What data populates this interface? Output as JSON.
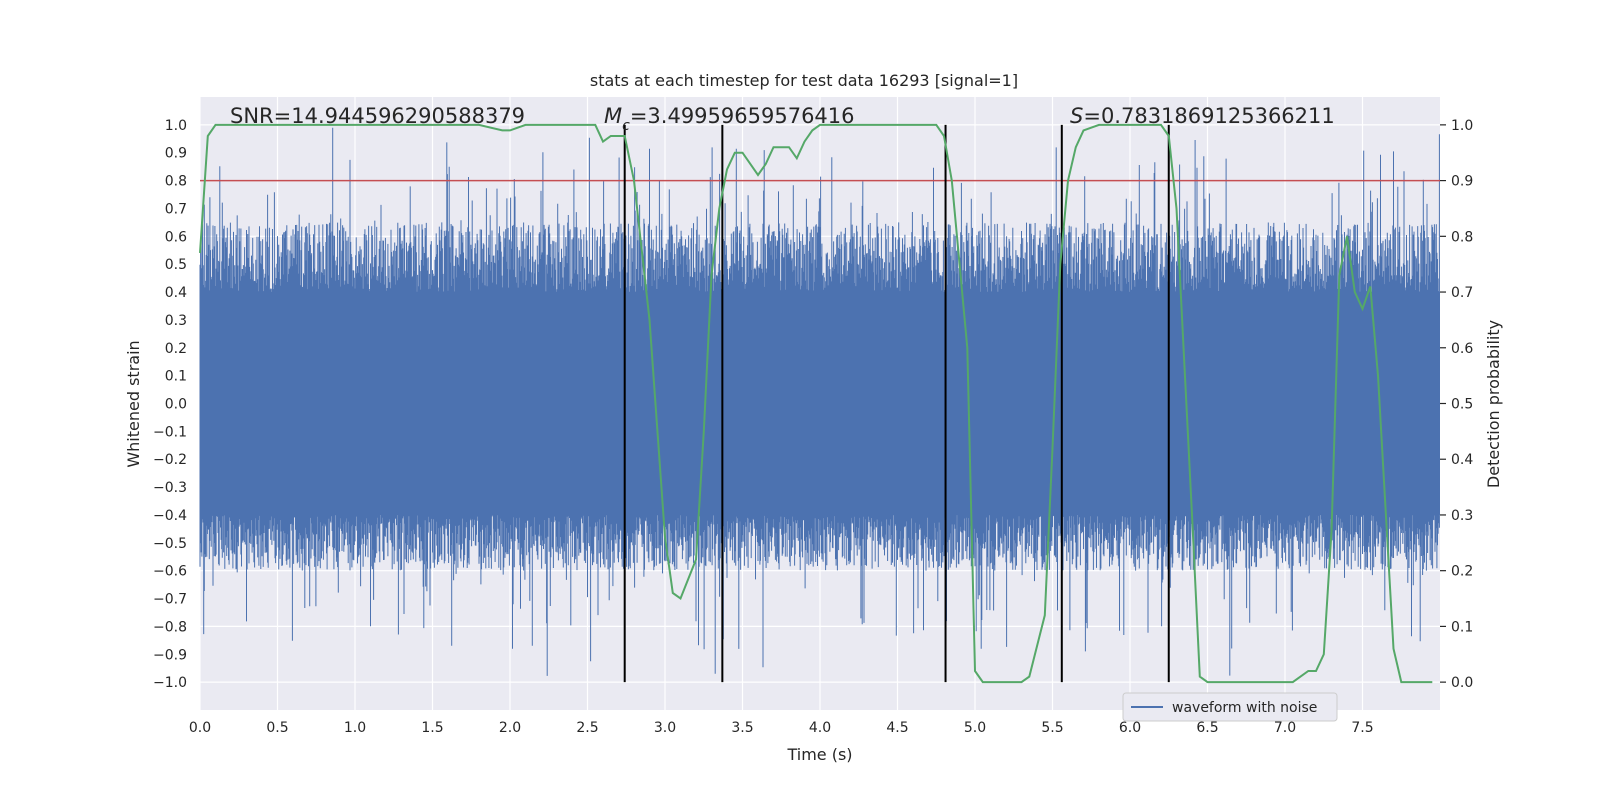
{
  "chart_data": {
    "type": "line",
    "title": "stats at each timestep for test data 16293 [signal=1]",
    "xlabel": "Time (s)",
    "ylabel_left": "Whitened strain",
    "ylabel_right": "Detection probability",
    "xlim": [
      0,
      8
    ],
    "ylim_left": [
      -1.1,
      1.1
    ],
    "ylim_right": [
      -0.05,
      1.05
    ],
    "x_ticks": [
      "0.0",
      "0.5",
      "1.0",
      "1.5",
      "2.0",
      "2.5",
      "3.0",
      "3.5",
      "4.0",
      "4.5",
      "5.0",
      "5.5",
      "6.0",
      "6.5",
      "7.0",
      "7.5"
    ],
    "y_left_ticks": [
      "1.0",
      "0.9",
      "0.8",
      "0.7",
      "0.6",
      "0.5",
      "0.4",
      "0.3",
      "0.2",
      "0.1",
      "0.0",
      "−0.1",
      "−0.2",
      "−0.3",
      "−0.4",
      "−0.5",
      "−0.6",
      "−0.7",
      "−0.8",
      "−0.9",
      "−1.0"
    ],
    "y_right_ticks": [
      "1.0",
      "0.9",
      "0.8",
      "0.7",
      "0.6",
      "0.5",
      "0.4",
      "0.3",
      "0.2",
      "0.1",
      "0.0"
    ],
    "stats": {
      "snr": "SNR=14.944596290588379",
      "mc_symbol": "M",
      "mc_sub": "c",
      "mc_value": "=3.49959659576416",
      "s_symbol": "S",
      "s_value": "=0.7831869125366211"
    },
    "threshold": {
      "value": 0.9,
      "color": "#c44e52"
    },
    "vertical_lines": [
      2.74,
      3.37,
      4.81,
      5.56,
      6.25
    ],
    "detection_probability": {
      "name": "detection probability",
      "color": "#55a868",
      "x": [
        0.0,
        0.05,
        0.1,
        0.15,
        0.3,
        0.5,
        1.0,
        1.5,
        1.8,
        1.95,
        2.0,
        2.1,
        2.3,
        2.5,
        2.55,
        2.6,
        2.65,
        2.7,
        2.74,
        2.8,
        2.9,
        3.0,
        3.05,
        3.1,
        3.2,
        3.25,
        3.3,
        3.35,
        3.4,
        3.45,
        3.5,
        3.6,
        3.65,
        3.7,
        3.8,
        3.85,
        3.9,
        3.95,
        4.0,
        4.3,
        4.5,
        4.75,
        4.8,
        4.85,
        4.95,
        5.0,
        5.05,
        5.1,
        5.2,
        5.3,
        5.35,
        5.45,
        5.5,
        5.55,
        5.6,
        5.65,
        5.7,
        5.8,
        5.9,
        6.2,
        6.25,
        6.3,
        6.4,
        6.45,
        6.5,
        6.8,
        7.0,
        7.05,
        7.1,
        7.15,
        7.2,
        7.25,
        7.3,
        7.35,
        7.4,
        7.45,
        7.5,
        7.55,
        7.6,
        7.7,
        7.75,
        7.95
      ],
      "y": [
        0.77,
        0.98,
        1.0,
        1.0,
        1.0,
        1.0,
        1.0,
        1.0,
        1.0,
        0.99,
        0.99,
        1.0,
        1.0,
        1.0,
        1.0,
        0.97,
        0.98,
        0.98,
        0.98,
        0.9,
        0.65,
        0.26,
        0.16,
        0.15,
        0.22,
        0.45,
        0.73,
        0.85,
        0.92,
        0.95,
        0.95,
        0.91,
        0.93,
        0.96,
        0.96,
        0.94,
        0.97,
        0.99,
        1.0,
        1.0,
        1.0,
        1.0,
        0.98,
        0.9,
        0.6,
        0.02,
        0.0,
        0.0,
        0.0,
        0.0,
        0.01,
        0.12,
        0.42,
        0.75,
        0.9,
        0.96,
        0.99,
        1.0,
        1.0,
        1.0,
        0.98,
        0.85,
        0.3,
        0.01,
        0.0,
        0.0,
        0.0,
        0.0,
        0.01,
        0.02,
        0.02,
        0.05,
        0.27,
        0.73,
        0.8,
        0.7,
        0.67,
        0.71,
        0.55,
        0.06,
        0.0,
        0.0
      ]
    },
    "waveform": {
      "name": "waveform with noise",
      "color": "#4c72b0",
      "core_amplitude": 0.4
    },
    "legend": {
      "position": "lower-right",
      "entries": [
        {
          "label": "waveform with noise",
          "color": "#4c72b0"
        }
      ]
    },
    "colors": {
      "plot_background": "#eaeaf2",
      "grid": "#ffffff",
      "marker_lines": "#000000"
    }
  }
}
